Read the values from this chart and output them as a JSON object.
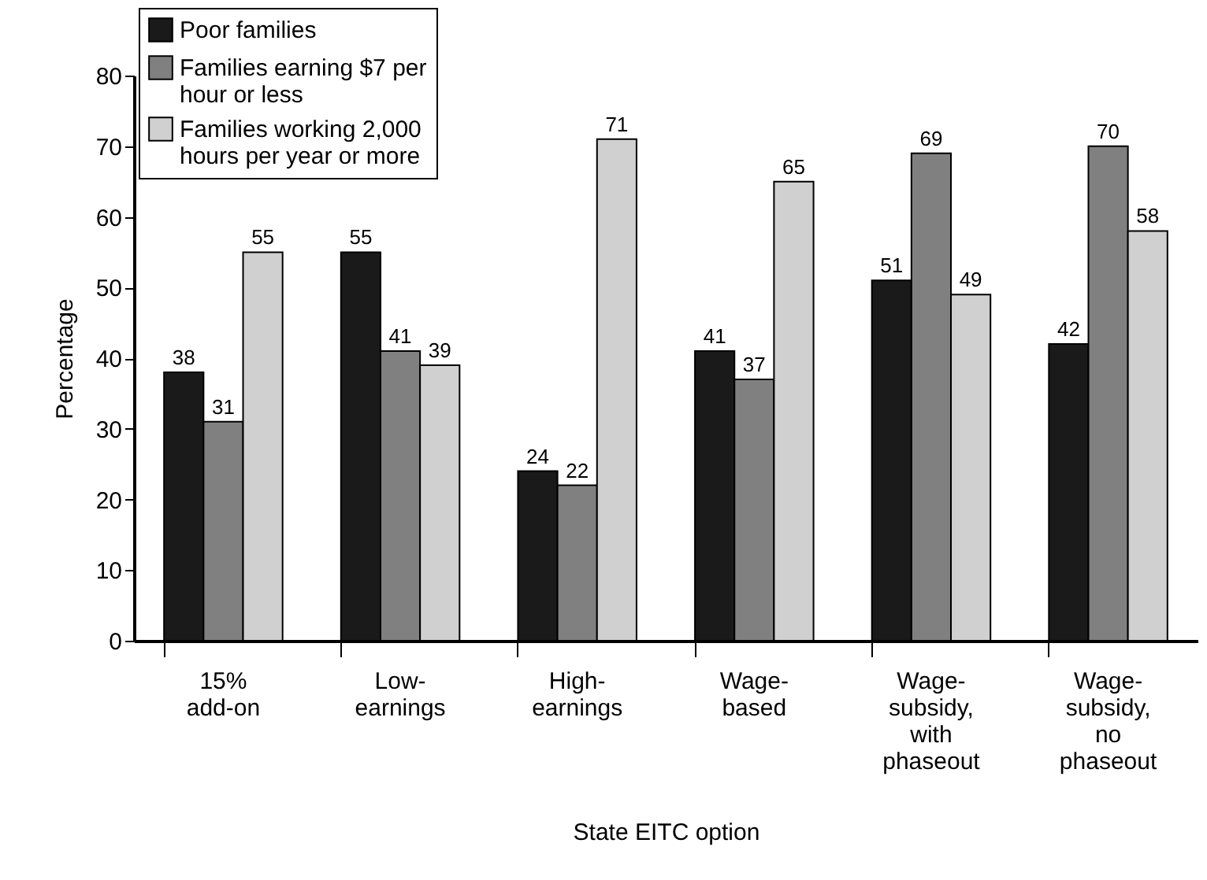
{
  "chart_data": {
    "type": "bar",
    "xlabel": "State EITC option",
    "ylabel": "Percentage",
    "categories": [
      "15%\nadd-on",
      "Low-\nearnings",
      "High-\nearnings",
      "Wage-\nbased",
      "Wage-\nsubsidy,\nwith\nphaseout",
      "Wage-\nsubsidy,\nno\nphaseout"
    ],
    "series": [
      {
        "name": "Poor families",
        "color": "#1a1a1a",
        "values": [
          38,
          55,
          24,
          41,
          51,
          42
        ]
      },
      {
        "name": "Families earning $7 per\nhour or less",
        "color": "#808080",
        "values": [
          31,
          41,
          22,
          37,
          69,
          70
        ]
      },
      {
        "name": "Families working 2,000\nhours per year or more",
        "color": "#d0d0d0",
        "values": [
          55,
          39,
          71,
          65,
          49,
          58
        ]
      }
    ],
    "ylim": [
      0,
      80
    ],
    "yticks": [
      0,
      10,
      20,
      30,
      40,
      50,
      60,
      70,
      80
    ],
    "grid": false,
    "legend": "top left",
    "data_labels": true
  }
}
